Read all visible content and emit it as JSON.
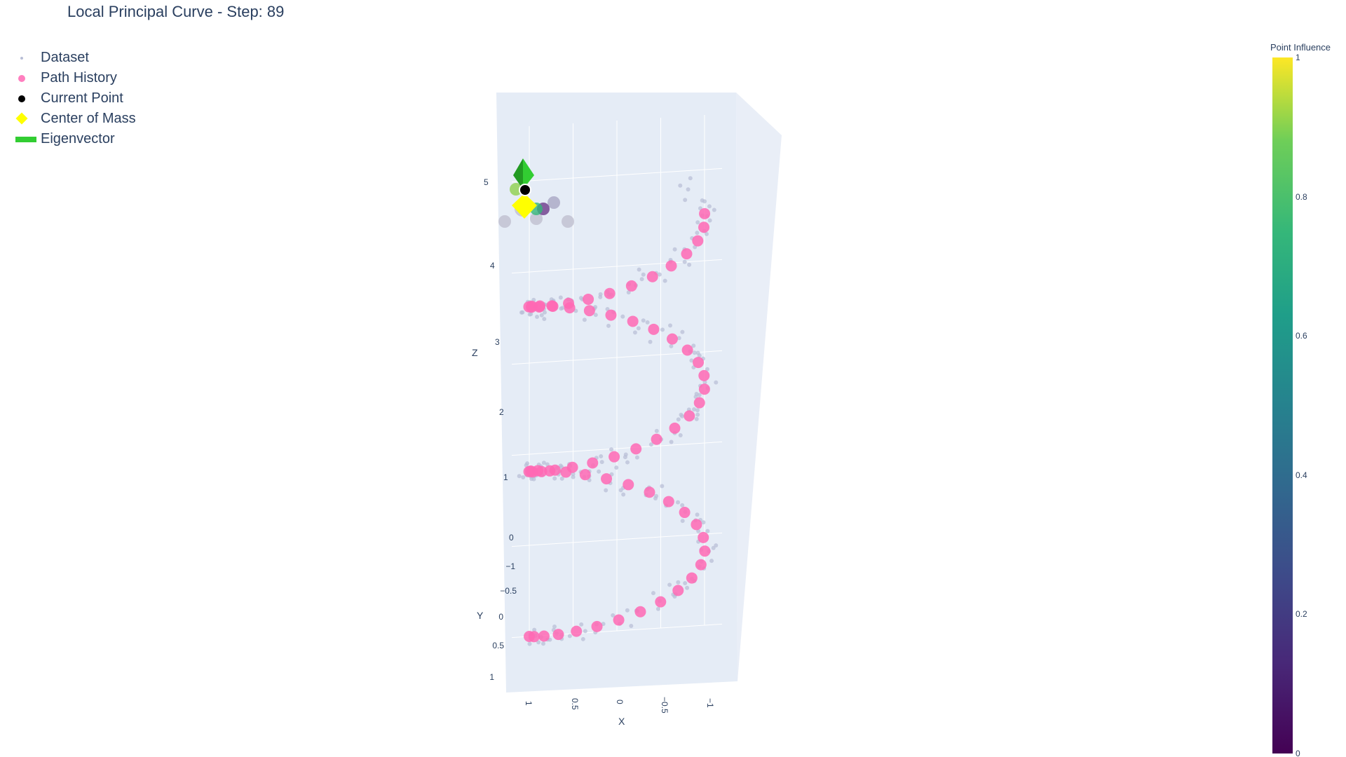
{
  "title": "Local Principal Curve - Step: 89",
  "legend": {
    "items": [
      {
        "label": "Dataset",
        "symbol": "dot",
        "color": "#b8bed6"
      },
      {
        "label": "Path History",
        "symbol": "circle",
        "color": "#ff69b4"
      },
      {
        "label": "Current Point",
        "symbol": "circle",
        "color": "#000000"
      },
      {
        "label": "Center of Mass",
        "symbol": "diamond",
        "color": "#ffff00"
      },
      {
        "label": "Eigenvector",
        "symbol": "bar",
        "color": "#32cd32"
      }
    ]
  },
  "colorbar": {
    "title": "Point Influence",
    "colorscale": "Viridis",
    "ticks": [
      "0",
      "0.2",
      "0.4",
      "0.6",
      "0.8",
      "1"
    ]
  },
  "chart_data": {
    "type": "scatter3d",
    "title": "Local Principal Curve - Step: 89",
    "axes": {
      "x": {
        "label": "X",
        "ticks": [
          "1",
          "0.5",
          "0",
          "−0.5",
          "−1"
        ],
        "range": [
          -1.2,
          1.2
        ]
      },
      "y": {
        "label": "Y",
        "ticks": [
          "−1",
          "−0.5",
          "0",
          "0.5",
          "1"
        ],
        "range": [
          -1.2,
          1.2
        ]
      },
      "z": {
        "label": "Z",
        "ticks": [
          "0",
          "1",
          "2",
          "3",
          "4",
          "5"
        ],
        "range": [
          0,
          5.5
        ]
      }
    },
    "colors": {
      "dataset": "#b8bed6",
      "path": "#ff69b4",
      "current": "#000000",
      "center": "#ffff00",
      "eigenvector": "#32cd32",
      "scene_bg": "#e5ecf6"
    },
    "helix": {
      "turns": 2.6,
      "radius": 1.0,
      "z_max": 4.7,
      "points": 240
    },
    "path_history_steps": 89,
    "current_point": {
      "x": 1.0,
      "y": -1.0,
      "z": 4.9
    },
    "center_of_mass": {
      "x": 1.0,
      "y": -0.9,
      "z": 4.55
    }
  }
}
